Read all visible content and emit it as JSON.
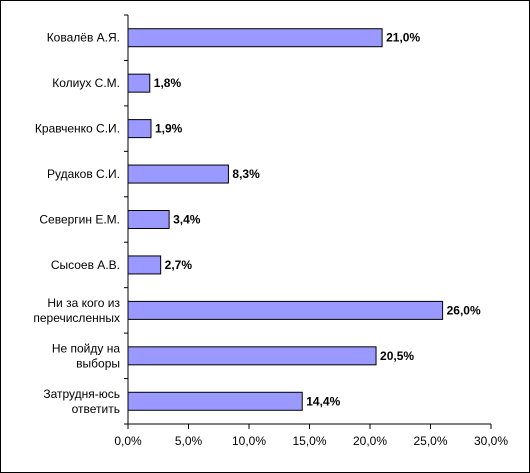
{
  "chart_data": {
    "type": "bar",
    "orientation": "horizontal",
    "title": "",
    "xlabel": "",
    "ylabel": "",
    "categories": [
      [
        "Ковалёв А.Я."
      ],
      [
        "Колиух С.М."
      ],
      [
        "Кравченко С.И."
      ],
      [
        "Рудаков С.И."
      ],
      [
        "Севергин Е.М."
      ],
      [
        "Сысоев А.В."
      ],
      [
        "Ни за кого из",
        "перечисленных"
      ],
      [
        "Не пойду на",
        "выборы"
      ],
      [
        "Затрудня-юсь",
        "ответить"
      ]
    ],
    "values": [
      21.0,
      1.8,
      1.9,
      8.3,
      3.4,
      2.7,
      26.0,
      20.5,
      14.4
    ],
    "value_labels": [
      "21,0%",
      "1,8%",
      "1,9%",
      "8,3%",
      "3,4%",
      "2,7%",
      "26,0%",
      "20,5%",
      "14,4%"
    ],
    "xlim": [
      0,
      30
    ],
    "ticks": [
      0,
      5,
      10,
      15,
      20,
      25,
      30
    ],
    "tick_labels": [
      "0,0%",
      "5,0%",
      "10,0%",
      "15,0%",
      "20,0%",
      "25,0%",
      "30,0%"
    ],
    "grid": false,
    "legend": "none",
    "bar_color": "#9999ff",
    "bar_edge_color": "#000000"
  }
}
